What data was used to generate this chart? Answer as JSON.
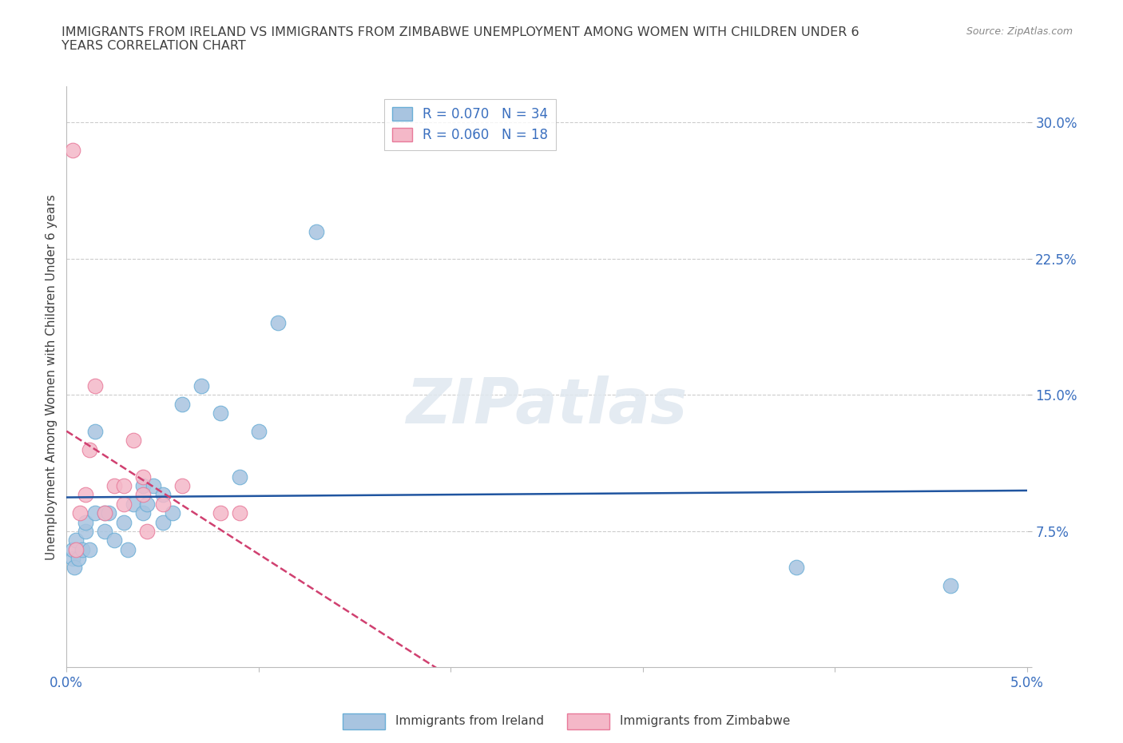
{
  "title": "IMMIGRANTS FROM IRELAND VS IMMIGRANTS FROM ZIMBABWE UNEMPLOYMENT AMONG WOMEN WITH CHILDREN UNDER 6\nYEARS CORRELATION CHART",
  "source": "Source: ZipAtlas.com",
  "ylabel": "Unemployment Among Women with Children Under 6 years",
  "xlim": [
    0.0,
    0.05
  ],
  "ylim": [
    0.0,
    0.32
  ],
  "xticks": [
    0.0,
    0.01,
    0.02,
    0.03,
    0.04,
    0.05
  ],
  "yticks": [
    0.0,
    0.075,
    0.15,
    0.225,
    0.3
  ],
  "ireland_color": "#a8c4e0",
  "ireland_edge": "#6aaed6",
  "zimbabwe_color": "#f4b8c8",
  "zimbabwe_edge": "#e87a9a",
  "ireland_line_color": "#2055a0",
  "zimbabwe_line_color": "#d04070",
  "ireland_R": 0.07,
  "ireland_N": 34,
  "zimbabwe_R": 0.06,
  "zimbabwe_N": 18,
  "watermark": "ZIPatlas",
  "ireland_x": [
    0.0003,
    0.0003,
    0.0004,
    0.0005,
    0.0006,
    0.0008,
    0.001,
    0.001,
    0.0012,
    0.0015,
    0.0015,
    0.002,
    0.002,
    0.0022,
    0.0025,
    0.003,
    0.0032,
    0.0035,
    0.004,
    0.004,
    0.0042,
    0.0045,
    0.005,
    0.005,
    0.0055,
    0.006,
    0.007,
    0.008,
    0.009,
    0.01,
    0.011,
    0.013,
    0.038,
    0.046
  ],
  "ireland_y": [
    0.06,
    0.065,
    0.055,
    0.07,
    0.06,
    0.065,
    0.075,
    0.08,
    0.065,
    0.085,
    0.13,
    0.075,
    0.085,
    0.085,
    0.07,
    0.08,
    0.065,
    0.09,
    0.085,
    0.1,
    0.09,
    0.1,
    0.08,
    0.095,
    0.085,
    0.145,
    0.155,
    0.14,
    0.105,
    0.13,
    0.19,
    0.24,
    0.055,
    0.045
  ],
  "zimbabwe_x": [
    0.0003,
    0.0005,
    0.0007,
    0.001,
    0.0012,
    0.0015,
    0.002,
    0.0025,
    0.003,
    0.003,
    0.0035,
    0.004,
    0.004,
    0.0042,
    0.005,
    0.006,
    0.008,
    0.009
  ],
  "zimbabwe_y": [
    0.285,
    0.065,
    0.085,
    0.095,
    0.12,
    0.155,
    0.085,
    0.1,
    0.09,
    0.1,
    0.125,
    0.095,
    0.105,
    0.075,
    0.09,
    0.1,
    0.085,
    0.085
  ],
  "grid_color": "#cccccc",
  "background_color": "#ffffff",
  "title_color": "#404040",
  "axis_label_color": "#404040",
  "tick_label_color": "#3a6fbf",
  "marker_size": 180
}
